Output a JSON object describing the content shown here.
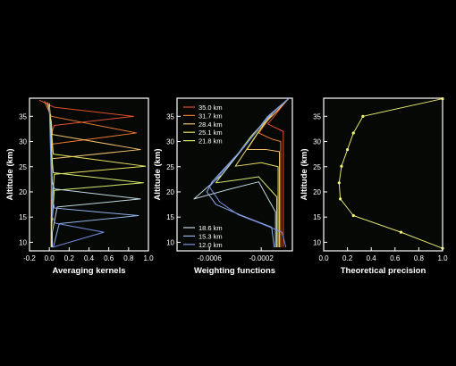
{
  "colors": {
    "background": "#000000",
    "panel_bg": "#050805",
    "axis": "#ffffff",
    "text": "#ffffff",
    "precision_line": "#e6e66e",
    "precision_marker": "#f4f480"
  },
  "chart_data": [
    {
      "id": "kernels",
      "type": "line",
      "xlabel": "Averaging kernels",
      "ylabel": "Altitude (km)",
      "xlim": [
        -0.2,
        1.0
      ],
      "ylim": [
        8.3,
        38.6
      ],
      "xticks": [
        -0.2,
        0.0,
        0.2,
        0.4,
        0.6,
        0.8,
        1.0
      ],
      "xtick_labels": [
        "-0.2",
        "0.0",
        "0.2",
        "0.4",
        "0.6",
        "0.8",
        "1.0"
      ],
      "yticks": [
        10,
        15,
        20,
        25,
        30,
        35
      ],
      "ytick_labels": [
        "10",
        "15",
        "20",
        "25",
        "30",
        "35"
      ],
      "series": [
        {
          "color": "#e05030",
          "points": [
            [
              -0.1,
              38.2
            ],
            [
              0.05,
              36.8
            ],
            [
              0.85,
              35.0
            ],
            [
              0.05,
              33.2
            ],
            [
              0.02,
              31.5
            ],
            [
              0.02,
              25
            ],
            [
              0.02,
              15
            ],
            [
              0.02,
              9
            ]
          ]
        },
        {
          "color": "#f07a30",
          "points": [
            [
              -0.05,
              38.0
            ],
            [
              0.02,
              35.0
            ],
            [
              0.88,
              31.7
            ],
            [
              0.03,
              29.5
            ],
            [
              0.02,
              26
            ],
            [
              0.02,
              15
            ],
            [
              0.02,
              9
            ]
          ]
        },
        {
          "color": "#f0c070",
          "points": [
            [
              -0.02,
              37.8
            ],
            [
              0.02,
              34
            ],
            [
              0.03,
              31.4
            ],
            [
              0.92,
              28.4
            ],
            [
              0.03,
              26.6
            ],
            [
              0.02,
              20
            ],
            [
              0.02,
              9
            ]
          ]
        },
        {
          "color": "#e8e060",
          "points": [
            [
              0.0,
              37.6
            ],
            [
              0.03,
              30
            ],
            [
              0.04,
              27.5
            ],
            [
              0.97,
              25.1
            ],
            [
              0.05,
              23.5
            ],
            [
              0.02,
              15
            ],
            [
              0.02,
              9
            ]
          ]
        },
        {
          "color": "#d8ea70",
          "points": [
            [
              0.0,
              37.4
            ],
            [
              0.03,
              26
            ],
            [
              0.04,
              23.8
            ],
            [
              0.95,
              21.8
            ],
            [
              0.05,
              20.3
            ],
            [
              0.02,
              12
            ],
            [
              0.02,
              9
            ]
          ]
        },
        {
          "color": "#c0d8e0",
          "points": [
            [
              0.0,
              37.2
            ],
            [
              0.03,
              22
            ],
            [
              0.05,
              20.6
            ],
            [
              0.92,
              18.6
            ],
            [
              0.08,
              17.0
            ],
            [
              0.03,
              12
            ],
            [
              0.03,
              9
            ]
          ]
        },
        {
          "color": "#90b0e8",
          "points": [
            [
              0.0,
              37.0
            ],
            [
              0.03,
              19
            ],
            [
              0.05,
              16.8
            ],
            [
              0.9,
              15.3
            ],
            [
              0.1,
              13.7
            ],
            [
              0.04,
              9
            ]
          ]
        },
        {
          "color": "#7890e0",
          "points": [
            [
              0.0,
              36.8
            ],
            [
              0.03,
              15
            ],
            [
              0.06,
              13.8
            ],
            [
              0.55,
              12.0
            ],
            [
              0.03,
              9.0
            ]
          ]
        }
      ]
    },
    {
      "id": "weighting",
      "type": "line",
      "xlabel": "Weighting functions",
      "ylabel": "Altitude (km)",
      "xlim": [
        -0.00085,
        4e-05
      ],
      "ylim": [
        8.3,
        38.6
      ],
      "xticks": [
        -0.0006,
        -0.0002
      ],
      "xtick_labels": [
        "-0.0006",
        "-0.0002"
      ],
      "yticks": [
        10,
        15,
        20,
        25,
        30,
        35
      ],
      "ytick_labels": [
        "10",
        "15",
        "20",
        "25",
        "30",
        "35"
      ],
      "legend_top": [
        {
          "label": "35.0 km",
          "color": "#e05030"
        },
        {
          "label": "31.7 km",
          "color": "#f07a30"
        },
        {
          "label": "28.4 km",
          "color": "#f0c070"
        },
        {
          "label": "25.1 km",
          "color": "#e8e060"
        },
        {
          "label": "21.8 km",
          "color": "#d8ea70"
        }
      ],
      "legend_bottom": [
        {
          "label": "18.6 km",
          "color": "#c0d8e0"
        },
        {
          "label": "15.3 km",
          "color": "#90b0e8"
        },
        {
          "label": "12.0 km",
          "color": "#7890e0"
        }
      ],
      "series": [
        {
          "color": "#e05030",
          "points": [
            [
              1e-05,
              38.5
            ],
            [
              -4e-05,
              37
            ],
            [
              -0.0001,
              35
            ],
            [
              -0.00015,
              33.5
            ],
            [
              -3e-05,
              32
            ],
            [
              -3e-05,
              9
            ]
          ]
        },
        {
          "color": "#f07a30",
          "points": [
            [
              1e-05,
              38.5
            ],
            [
              -6e-05,
              36.5
            ],
            [
              -0.00014,
              34.5
            ],
            [
              -0.00022,
              31.7
            ],
            [
              -0.00012,
              30.5
            ],
            [
              -5e-05,
              30
            ],
            [
              -5e-05,
              9
            ]
          ]
        },
        {
          "color": "#f0c070",
          "points": [
            [
              1e-05,
              38.5
            ],
            [
              -8e-05,
              36
            ],
            [
              -0.00018,
              33.5
            ],
            [
              -0.00031,
              28.4
            ],
            [
              -0.00016,
              28.4
            ],
            [
              -6e-05,
              28
            ],
            [
              -6e-05,
              9
            ]
          ]
        },
        {
          "color": "#e8e060",
          "points": [
            [
              1e-05,
              38.5
            ],
            [
              -0.0001,
              36
            ],
            [
              -0.00022,
              32
            ],
            [
              -0.0004,
              25.1
            ],
            [
              -0.0002,
              25.8
            ],
            [
              -7e-05,
              25
            ],
            [
              -7e-05,
              9
            ]
          ]
        },
        {
          "color": "#d8ea70",
          "points": [
            [
              1e-05,
              38.5
            ],
            [
              -0.00012,
              35.5
            ],
            [
              -0.00028,
              31
            ],
            [
              -0.00055,
              21.8
            ],
            [
              -0.00035,
              22.5
            ],
            [
              -0.00022,
              23
            ],
            [
              -8e-05,
              19
            ],
            [
              -8e-05,
              9
            ]
          ]
        },
        {
          "color": "#c0d8e0",
          "points": [
            [
              1e-05,
              38.5
            ],
            [
              -0.00014,
              35
            ],
            [
              -0.0003,
              30
            ],
            [
              -0.0005,
              23.5
            ],
            [
              -0.00072,
              18.6
            ],
            [
              -0.00045,
              20.5
            ],
            [
              -0.00022,
              22
            ],
            [
              -9e-05,
              16
            ],
            [
              -9e-05,
              9
            ]
          ]
        },
        {
          "color": "#90b0e8",
          "points": [
            [
              1e-05,
              38.5
            ],
            [
              -0.00015,
              35
            ],
            [
              -0.00033,
              29
            ],
            [
              -0.00058,
              22
            ],
            [
              -0.00062,
              20
            ],
            [
              -0.00055,
              17.5
            ],
            [
              -0.00035,
              15.3
            ],
            [
              -0.00012,
              13
            ],
            [
              -0.0001,
              9
            ]
          ]
        },
        {
          "color": "#7890e0",
          "points": [
            [
              1e-05,
              38.5
            ],
            [
              -0.00016,
              34.5
            ],
            [
              -0.00035,
              28.5
            ],
            [
              -0.0006,
              21
            ],
            [
              -0.00052,
              18
            ],
            [
              -0.00038,
              15.5
            ],
            [
              -0.00018,
              13.5
            ],
            [
              -4e-05,
              12.0
            ],
            [
              -1e-05,
              9
            ]
          ]
        }
      ]
    },
    {
      "id": "precision",
      "type": "line",
      "xlabel": "Theoretical precision",
      "ylabel": "Altitude (km)",
      "xlim": [
        0.0,
        1.0
      ],
      "ylim": [
        8.3,
        38.6
      ],
      "xticks": [
        0.0,
        0.2,
        0.4,
        0.6,
        0.8,
        1.0
      ],
      "xtick_labels": [
        "0.0",
        "0.2",
        "0.4",
        "0.6",
        "0.8",
        "1.0"
      ],
      "yticks": [
        10,
        15,
        20,
        25,
        30,
        35
      ],
      "ytick_labels": [
        "10",
        "15",
        "20",
        "25",
        "30",
        "35"
      ],
      "series": [
        {
          "color": "#e6e66e",
          "markers": true,
          "points": [
            [
              1.0,
              38.5
            ],
            [
              0.33,
              35.0
            ],
            [
              0.25,
              31.7
            ],
            [
              0.2,
              28.4
            ],
            [
              0.15,
              25.1
            ],
            [
              0.13,
              21.8
            ],
            [
              0.14,
              18.6
            ],
            [
              0.25,
              15.3
            ],
            [
              0.65,
              12.0
            ],
            [
              1.0,
              8.8
            ]
          ]
        }
      ]
    }
  ]
}
